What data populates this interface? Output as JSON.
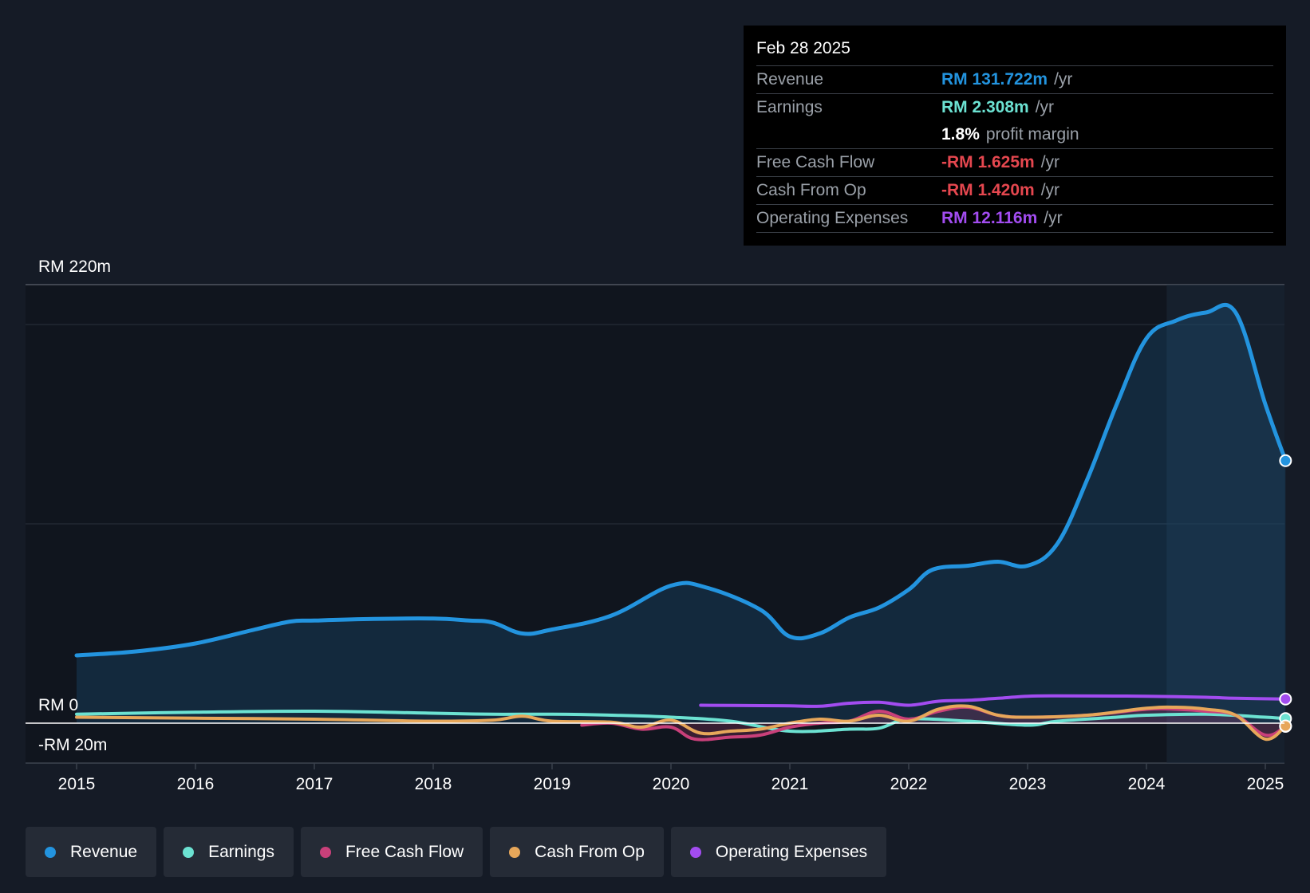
{
  "tooltip": {
    "date": "Feb 28 2025",
    "rows": [
      {
        "label": "Revenue",
        "value": "RM 131.722m",
        "unit": "/yr",
        "color": "#2394df"
      },
      {
        "label": "Earnings",
        "value": "RM 2.308m",
        "unit": "/yr",
        "color": "#6ce2d2"
      },
      {
        "label": "",
        "value": "1.8%",
        "unit": "profit margin",
        "color": "#ffffff"
      },
      {
        "label": "Free Cash Flow",
        "value": "-RM 1.625m",
        "unit": "/yr",
        "color": "#e5474f"
      },
      {
        "label": "Cash From Op",
        "value": "-RM 1.420m",
        "unit": "/yr",
        "color": "#e5474f"
      },
      {
        "label": "Operating Expenses",
        "value": "RM 12.116m",
        "unit": "/yr",
        "color": "#a24cf0"
      }
    ]
  },
  "legend": [
    {
      "label": "Revenue",
      "color": "#2394df"
    },
    {
      "label": "Earnings",
      "color": "#6ce2d2"
    },
    {
      "label": "Free Cash Flow",
      "color": "#c9407a"
    },
    {
      "label": "Cash From Op",
      "color": "#e7a75a"
    },
    {
      "label": "Operating Expenses",
      "color": "#a24cf0"
    }
  ],
  "chart_data": {
    "type": "area",
    "title": "",
    "xlabel": "",
    "ylabel": "",
    "ylim": [
      -20,
      220
    ],
    "y_ticks": [
      "RM 220m",
      "RM 0",
      "-RM 20m"
    ],
    "x_ticks": [
      "2015",
      "2016",
      "2017",
      "2018",
      "2019",
      "2020",
      "2021",
      "2022",
      "2023",
      "2024",
      "2025"
    ],
    "grid": true,
    "highlight_from": 2024.17,
    "series": [
      {
        "name": "Revenue",
        "color": "#2394df",
        "fill": true,
        "points": [
          [
            2015.0,
            34
          ],
          [
            2015.5,
            36
          ],
          [
            2016.0,
            40
          ],
          [
            2016.5,
            47
          ],
          [
            2016.8,
            51
          ],
          [
            2017.0,
            51.5
          ],
          [
            2017.5,
            52.3
          ],
          [
            2018.0,
            52.5
          ],
          [
            2018.3,
            51.5
          ],
          [
            2018.5,
            50.5
          ],
          [
            2018.75,
            45
          ],
          [
            2019.0,
            47
          ],
          [
            2019.5,
            54
          ],
          [
            2020.0,
            69
          ],
          [
            2020.3,
            68
          ],
          [
            2020.75,
            57
          ],
          [
            2021.0,
            43.5
          ],
          [
            2021.25,
            45
          ],
          [
            2021.5,
            53
          ],
          [
            2021.75,
            58
          ],
          [
            2022.0,
            67
          ],
          [
            2022.2,
            77
          ],
          [
            2022.5,
            79
          ],
          [
            2022.75,
            81
          ],
          [
            2023.0,
            79
          ],
          [
            2023.25,
            90
          ],
          [
            2023.5,
            122
          ],
          [
            2023.75,
            160
          ],
          [
            2024.0,
            193
          ],
          [
            2024.25,
            202
          ],
          [
            2024.5,
            206
          ],
          [
            2024.75,
            206
          ],
          [
            2025.0,
            160
          ],
          [
            2025.17,
            131.7
          ]
        ]
      },
      {
        "name": "Earnings",
        "color": "#6ce2d2",
        "fill": false,
        "points": [
          [
            2015.0,
            4.5
          ],
          [
            2016.0,
            5.5
          ],
          [
            2017.0,
            6
          ],
          [
            2018.0,
            5
          ],
          [
            2018.5,
            4.5
          ],
          [
            2019.0,
            4.5
          ],
          [
            2019.5,
            4
          ],
          [
            2020.0,
            3
          ],
          [
            2020.5,
            1
          ],
          [
            2021.0,
            -4
          ],
          [
            2021.5,
            -3
          ],
          [
            2021.75,
            -2.5
          ],
          [
            2022.0,
            2
          ],
          [
            2022.5,
            1
          ],
          [
            2023.0,
            -1
          ],
          [
            2023.25,
            1
          ],
          [
            2023.75,
            3
          ],
          [
            2024.0,
            4
          ],
          [
            2024.5,
            4.5
          ],
          [
            2025.0,
            3
          ],
          [
            2025.17,
            2.3
          ]
        ]
      },
      {
        "name": "Free Cash Flow",
        "color": "#c9407a",
        "fill": true,
        "points": [
          [
            2019.25,
            -1
          ],
          [
            2019.5,
            0
          ],
          [
            2019.75,
            -3
          ],
          [
            2020.0,
            -2
          ],
          [
            2020.2,
            -8
          ],
          [
            2020.5,
            -7
          ],
          [
            2020.75,
            -6
          ],
          [
            2021.0,
            -2
          ],
          [
            2021.25,
            0
          ],
          [
            2021.5,
            1
          ],
          [
            2021.75,
            6
          ],
          [
            2022.0,
            2
          ],
          [
            2022.25,
            6
          ],
          [
            2022.5,
            8
          ],
          [
            2022.75,
            4
          ],
          [
            2023.0,
            3
          ],
          [
            2023.5,
            4
          ],
          [
            2024.0,
            7
          ],
          [
            2024.25,
            7
          ],
          [
            2024.5,
            6
          ],
          [
            2024.75,
            4
          ],
          [
            2025.0,
            -6
          ],
          [
            2025.17,
            -1.6
          ]
        ]
      },
      {
        "name": "Cash From Op",
        "color": "#e7a75a",
        "fill": false,
        "points": [
          [
            2015.0,
            3
          ],
          [
            2016.0,
            2.5
          ],
          [
            2017.0,
            2
          ],
          [
            2018.0,
            1
          ],
          [
            2018.5,
            1.5
          ],
          [
            2018.75,
            3.5
          ],
          [
            2019.0,
            1
          ],
          [
            2019.5,
            0.5
          ],
          [
            2019.75,
            -2
          ],
          [
            2020.0,
            1.5
          ],
          [
            2020.25,
            -5
          ],
          [
            2020.5,
            -4
          ],
          [
            2020.75,
            -3
          ],
          [
            2021.0,
            0
          ],
          [
            2021.25,
            2
          ],
          [
            2021.5,
            1
          ],
          [
            2021.75,
            4
          ],
          [
            2022.0,
            1
          ],
          [
            2022.25,
            7
          ],
          [
            2022.5,
            8.5
          ],
          [
            2022.75,
            4
          ],
          [
            2023.0,
            3
          ],
          [
            2023.5,
            4
          ],
          [
            2024.0,
            7.5
          ],
          [
            2024.25,
            8
          ],
          [
            2024.5,
            7
          ],
          [
            2024.75,
            4
          ],
          [
            2025.0,
            -8
          ],
          [
            2025.17,
            -1.4
          ]
        ]
      },
      {
        "name": "Operating Expenses",
        "color": "#a24cf0",
        "fill": false,
        "points": [
          [
            2020.25,
            9
          ],
          [
            2020.75,
            8.8
          ],
          [
            2021.0,
            8.7
          ],
          [
            2021.25,
            8.5
          ],
          [
            2021.5,
            10
          ],
          [
            2021.75,
            10.5
          ],
          [
            2022.0,
            9
          ],
          [
            2022.25,
            11
          ],
          [
            2022.5,
            11.5
          ],
          [
            2022.75,
            12.5
          ],
          [
            2023.0,
            13.5
          ],
          [
            2023.25,
            13.7
          ],
          [
            2023.75,
            13.6
          ],
          [
            2024.0,
            13.5
          ],
          [
            2024.5,
            13
          ],
          [
            2024.75,
            12.5
          ],
          [
            2025.17,
            12.1
          ]
        ]
      }
    ]
  }
}
